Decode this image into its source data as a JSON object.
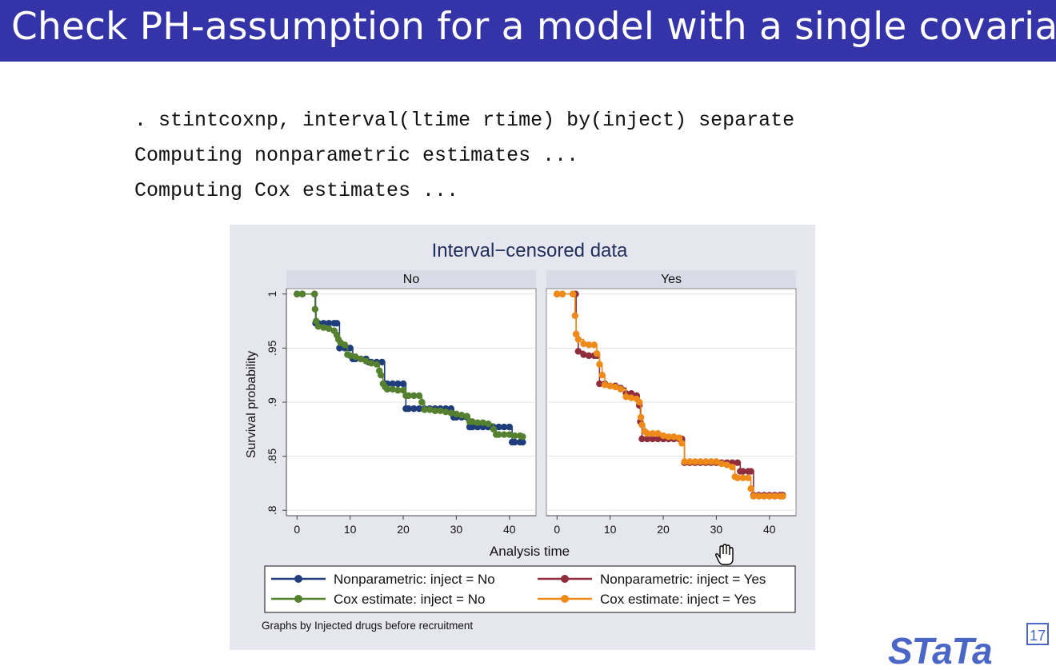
{
  "slide": {
    "title": "Check PH-assumption for a model with a single covariate",
    "code_lines": [
      ". stintcoxnp, interval(ltime rtime) by(inject) separate",
      "Computing nonparametric estimates ...",
      "Computing Cox estimates ..."
    ]
  },
  "logo": {
    "text": "STaTa",
    "badge": "17"
  },
  "colors": {
    "title_bg": "#3434a8",
    "np_no": "#1f3d7a",
    "cox_no": "#55802f",
    "np_yes": "#8f2d3c",
    "cox_yes": "#ee8a1a"
  },
  "chart_data": {
    "type": "line",
    "title": "Interval−censored data",
    "xlabel": "Analysis time",
    "ylabel": "Survival probability",
    "xlim": [
      -2,
      45
    ],
    "ylim": [
      0.795,
      1.005
    ],
    "xticks": [
      "0",
      "10",
      "20",
      "30",
      "40"
    ],
    "yticks": [
      "1",
      ".95",
      ".9",
      ".85",
      ".8"
    ],
    "grid": true,
    "legend_position": "bottom",
    "note": "Graphs by Injected drugs before recruitment",
    "panels": [
      {
        "label": "No",
        "series": [
          {
            "name": "Nonparametric: inject = No",
            "color": "#1f3d7a",
            "points": [
              [
                0,
                1
              ],
              [
                1,
                1
              ],
              [
                3.3,
                1
              ],
              [
                3.5,
                0.973
              ],
              [
                4,
                0.973
              ],
              [
                5,
                0.973
              ],
              [
                6,
                0.973
              ],
              [
                7,
                0.973
              ],
              [
                7.5,
                0.973
              ],
              [
                8,
                0.95
              ],
              [
                9,
                0.95
              ],
              [
                10,
                0.95
              ],
              [
                10.5,
                0.94
              ],
              [
                11,
                0.94
              ],
              [
                12,
                0.94
              ],
              [
                13,
                0.94
              ],
              [
                13.5,
                0.937
              ],
              [
                14,
                0.937
              ],
              [
                15,
                0.937
              ],
              [
                16,
                0.937
              ],
              [
                16.5,
                0.917
              ],
              [
                17,
                0.917
              ],
              [
                18,
                0.917
              ],
              [
                19,
                0.917
              ],
              [
                20,
                0.917
              ],
              [
                20.5,
                0.894
              ],
              [
                21,
                0.894
              ],
              [
                22,
                0.894
              ],
              [
                23,
                0.894
              ],
              [
                24,
                0.894
              ],
              [
                25,
                0.894
              ],
              [
                26,
                0.894
              ],
              [
                27,
                0.894
              ],
              [
                28,
                0.894
              ],
              [
                29,
                0.894
              ],
              [
                29.5,
                0.886
              ],
              [
                30,
                0.886
              ],
              [
                31,
                0.886
              ],
              [
                32,
                0.886
              ],
              [
                32.5,
                0.877
              ],
              [
                33,
                0.877
              ],
              [
                34,
                0.877
              ],
              [
                35,
                0.877
              ],
              [
                36,
                0.877
              ],
              [
                37,
                0.877
              ],
              [
                38,
                0.877
              ],
              [
                39,
                0.877
              ],
              [
                40,
                0.877
              ],
              [
                40.5,
                0.863
              ],
              [
                41,
                0.863
              ],
              [
                42,
                0.863
              ],
              [
                42.5,
                0.863
              ]
            ]
          },
          {
            "name": "Cox estimate: inject = No",
            "color": "#55802f",
            "points": [
              [
                0,
                1
              ],
              [
                1,
                1
              ],
              [
                3.3,
                1
              ],
              [
                3.4,
                0.986
              ],
              [
                3.6,
                0.975
              ],
              [
                4,
                0.97
              ],
              [
                5,
                0.969
              ],
              [
                6,
                0.968
              ],
              [
                7,
                0.966
              ],
              [
                7.5,
                0.962
              ],
              [
                7.8,
                0.958
              ],
              [
                8.2,
                0.955
              ],
              [
                9,
                0.953
              ],
              [
                9.5,
                0.944
              ],
              [
                10,
                0.943
              ],
              [
                11,
                0.942
              ],
              [
                12,
                0.94
              ],
              [
                13,
                0.938
              ],
              [
                14,
                0.936
              ],
              [
                15,
                0.935
              ],
              [
                15.5,
                0.929
              ],
              [
                15.8,
                0.925
              ],
              [
                16.2,
                0.917
              ],
              [
                16.6,
                0.914
              ],
              [
                17,
                0.912
              ],
              [
                18,
                0.912
              ],
              [
                19,
                0.911
              ],
              [
                20,
                0.911
              ],
              [
                20.5,
                0.906
              ],
              [
                21,
                0.906
              ],
              [
                22,
                0.906
              ],
              [
                23,
                0.906
              ],
              [
                23.5,
                0.9
              ],
              [
                24,
                0.893
              ],
              [
                25,
                0.893
              ],
              [
                26,
                0.892
              ],
              [
                27,
                0.892
              ],
              [
                28,
                0.891
              ],
              [
                29,
                0.89
              ],
              [
                30,
                0.889
              ],
              [
                31,
                0.888
              ],
              [
                32,
                0.887
              ],
              [
                32.5,
                0.882
              ],
              [
                33,
                0.882
              ],
              [
                34,
                0.881
              ],
              [
                35,
                0.881
              ],
              [
                36,
                0.88
              ],
              [
                37,
                0.875
              ],
              [
                37.5,
                0.87
              ],
              [
                38,
                0.87
              ],
              [
                39,
                0.87
              ],
              [
                40,
                0.87
              ],
              [
                41,
                0.869
              ],
              [
                42,
                0.869
              ],
              [
                42.5,
                0.868
              ]
            ]
          }
        ]
      },
      {
        "label": "Yes",
        "series": [
          {
            "name": "Nonparametric: inject = Yes",
            "color": "#8f2d3c",
            "points": [
              [
                0,
                1
              ],
              [
                1,
                1
              ],
              [
                3,
                1
              ],
              [
                3.5,
                1
              ],
              [
                3.6,
                0.963
              ],
              [
                4,
                0.947
              ],
              [
                5,
                0.944
              ],
              [
                6,
                0.943
              ],
              [
                7,
                0.943
              ],
              [
                7.5,
                0.943
              ],
              [
                8,
                0.917
              ],
              [
                9,
                0.917
              ],
              [
                10,
                0.915
              ],
              [
                11,
                0.915
              ],
              [
                12,
                0.913
              ],
              [
                13,
                0.908
              ],
              [
                14,
                0.908
              ],
              [
                15,
                0.906
              ],
              [
                15.5,
                0.897
              ],
              [
                15.7,
                0.882
              ],
              [
                16,
                0.866
              ],
              [
                17,
                0.866
              ],
              [
                18,
                0.866
              ],
              [
                19,
                0.866
              ],
              [
                20,
                0.866
              ],
              [
                21,
                0.866
              ],
              [
                22,
                0.866
              ],
              [
                23,
                0.866
              ],
              [
                23.5,
                0.866
              ],
              [
                24,
                0.844
              ],
              [
                25,
                0.844
              ],
              [
                26,
                0.844
              ],
              [
                27,
                0.844
              ],
              [
                28,
                0.844
              ],
              [
                29,
                0.844
              ],
              [
                30,
                0.844
              ],
              [
                31,
                0.844
              ],
              [
                32,
                0.844
              ],
              [
                33,
                0.844
              ],
              [
                34,
                0.844
              ],
              [
                34.5,
                0.836
              ],
              [
                35,
                0.836
              ],
              [
                36,
                0.836
              ],
              [
                36.5,
                0.836
              ],
              [
                37,
                0.814
              ],
              [
                38,
                0.814
              ],
              [
                39,
                0.814
              ],
              [
                40,
                0.814
              ],
              [
                41,
                0.814
              ],
              [
                42,
                0.814
              ],
              [
                42.5,
                0.814
              ]
            ]
          },
          {
            "name": "Cox estimate: inject = Yes",
            "color": "#ee8a1a",
            "points": [
              [
                0,
                1
              ],
              [
                1,
                1
              ],
              [
                3,
                1
              ],
              [
                3.4,
                0.98
              ],
              [
                3.6,
                0.963
              ],
              [
                4,
                0.958
              ],
              [
                5,
                0.954
              ],
              [
                6,
                0.953
              ],
              [
                7,
                0.953
              ],
              [
                7.5,
                0.945
              ],
              [
                8,
                0.935
              ],
              [
                8.5,
                0.925
              ],
              [
                9,
                0.916
              ],
              [
                10,
                0.915
              ],
              [
                11,
                0.914
              ],
              [
                12,
                0.912
              ],
              [
                13,
                0.905
              ],
              [
                14,
                0.904
              ],
              [
                15,
                0.903
              ],
              [
                15.5,
                0.9
              ],
              [
                15.8,
                0.886
              ],
              [
                16,
                0.879
              ],
              [
                16.5,
                0.873
              ],
              [
                17,
                0.871
              ],
              [
                18,
                0.871
              ],
              [
                19,
                0.871
              ],
              [
                20,
                0.869
              ],
              [
                21,
                0.868
              ],
              [
                22,
                0.868
              ],
              [
                23,
                0.867
              ],
              [
                23.5,
                0.862
              ],
              [
                24,
                0.845
              ],
              [
                25,
                0.845
              ],
              [
                26,
                0.845
              ],
              [
                27,
                0.845
              ],
              [
                28,
                0.845
              ],
              [
                29,
                0.845
              ],
              [
                30,
                0.845
              ],
              [
                31,
                0.843
              ],
              [
                32,
                0.842
              ],
              [
                33,
                0.84
              ],
              [
                33.5,
                0.831
              ],
              [
                34,
                0.83
              ],
              [
                35,
                0.83
              ],
              [
                36,
                0.83
              ],
              [
                36.5,
                0.82
              ],
              [
                37,
                0.813
              ],
              [
                38,
                0.813
              ],
              [
                39,
                0.813
              ],
              [
                40,
                0.813
              ],
              [
                41,
                0.813
              ],
              [
                42,
                0.813
              ],
              [
                42.5,
                0.813
              ]
            ]
          }
        ]
      }
    ]
  }
}
